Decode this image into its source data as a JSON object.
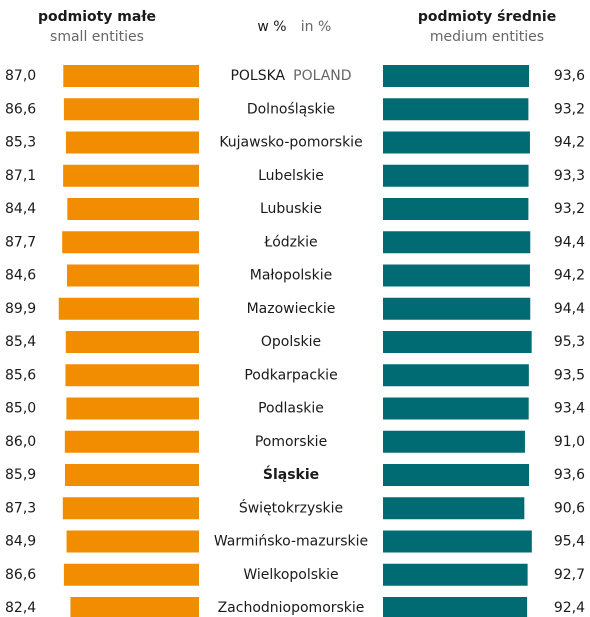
{
  "chart_data": {
    "type": "butterfly",
    "center_title": "w %",
    "center_subtitle": "in %",
    "categories": [
      "POLSKA",
      "Dolnośląskie",
      "Kujawsko-pomorskie",
      "Lubelskie",
      "Lubuskie",
      "Łódzkie",
      "Małopolskie",
      "Mazowieckie",
      "Opolskie",
      "Podkarpackie",
      "Podlaskie",
      "Pomorskie",
      "Śląskie",
      "Świętokrzyskie",
      "Warmińsko-mazurskie",
      "Wielkopolskie",
      "Zachodniopomorskie"
    ],
    "category_translations": [
      "POLAND",
      null,
      null,
      null,
      null,
      null,
      null,
      null,
      null,
      null,
      null,
      null,
      null,
      null,
      null,
      null,
      null
    ],
    "bold_index": 12,
    "xlim": [
      0,
      100
    ],
    "series": [
      {
        "name": "podmioty małe",
        "name_en": "small entities",
        "color": "#f28c00",
        "values": [
          87.0,
          86.6,
          85.3,
          87.1,
          84.4,
          87.7,
          84.6,
          89.9,
          85.4,
          85.6,
          85.0,
          86.0,
          85.9,
          87.3,
          84.9,
          86.6,
          82.4
        ],
        "value_labels": [
          "87,0",
          "86,6",
          "85,3",
          "87,1",
          "84,4",
          "87,7",
          "84,6",
          "89,9",
          "85,4",
          "85,6",
          "85,0",
          "86,0",
          "85,9",
          "87,3",
          "84,9",
          "86,6",
          "82,4"
        ]
      },
      {
        "name": "podmioty średnie",
        "name_en": "medium entities",
        "color": "#006b73",
        "values": [
          93.6,
          93.2,
          94.2,
          93.3,
          93.2,
          94.4,
          94.2,
          94.4,
          95.3,
          93.5,
          93.4,
          91.0,
          93.6,
          90.6,
          95.4,
          92.7,
          92.4
        ],
        "value_labels": [
          "93,6",
          "93,2",
          "94,2",
          "93,3",
          "93,2",
          "94,4",
          "94,2",
          "94,4",
          "95,3",
          "93,5",
          "93,4",
          "91,0",
          "93,6",
          "90,6",
          "95,4",
          "92,7",
          "92,4"
        ]
      }
    ]
  }
}
